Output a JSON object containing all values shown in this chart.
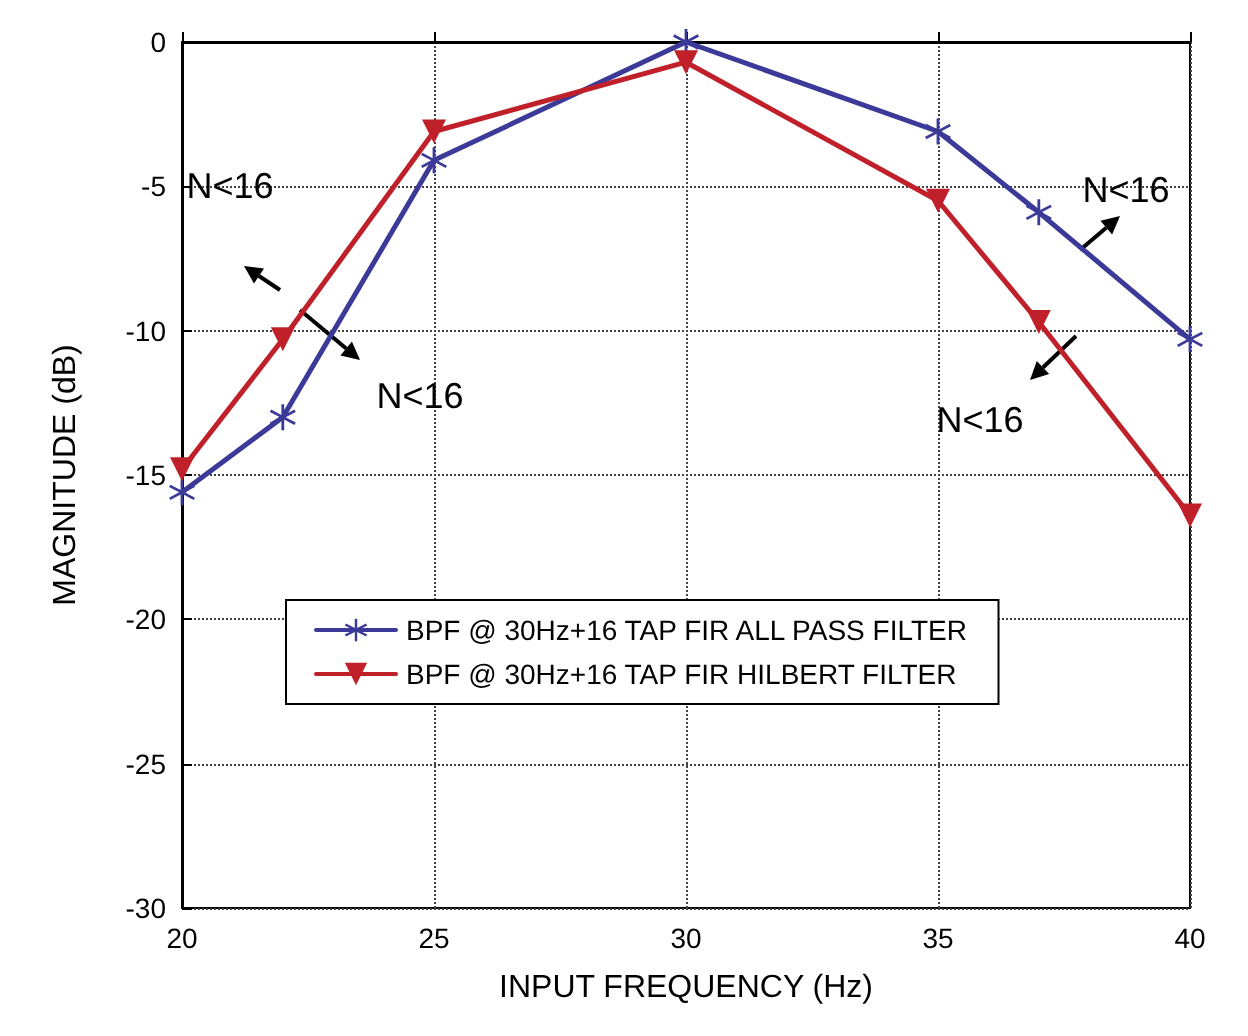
{
  "chart_data": {
    "type": "line",
    "xlabel": "INPUT FREQUENCY (Hz)",
    "ylabel": "MAGNITUDE (dB)",
    "x": [
      20,
      22,
      25,
      30,
      35,
      37,
      40
    ],
    "series": [
      {
        "name": "BPF @ 30Hz+16 TAP FIR ALL PASS FILTER",
        "color": "#3b3a98",
        "marker": "star",
        "values": [
          -15.6,
          -13.0,
          -4.1,
          0,
          -3.1,
          -5.9,
          -10.3
        ]
      },
      {
        "name": "BPF @ 30Hz+16 TAP FIR HILBERT FILTER",
        "color": "#c0202a",
        "marker": "triangle",
        "values": [
          -14.8,
          -10.3,
          -3.1,
          -0.7,
          -5.5,
          -9.7,
          -16.4
        ]
      }
    ],
    "xlim": [
      20,
      40
    ],
    "xticks": [
      20,
      25,
      30,
      35,
      40
    ],
    "ylim": [
      -30,
      0
    ],
    "yticks": [
      -30,
      -25,
      -20,
      -15,
      -10,
      -5,
      0
    ],
    "grid": true,
    "legend": "center",
    "line_style": "solid",
    "annotations": [
      "N<16",
      "N<16",
      "N<16",
      "N<16"
    ]
  }
}
